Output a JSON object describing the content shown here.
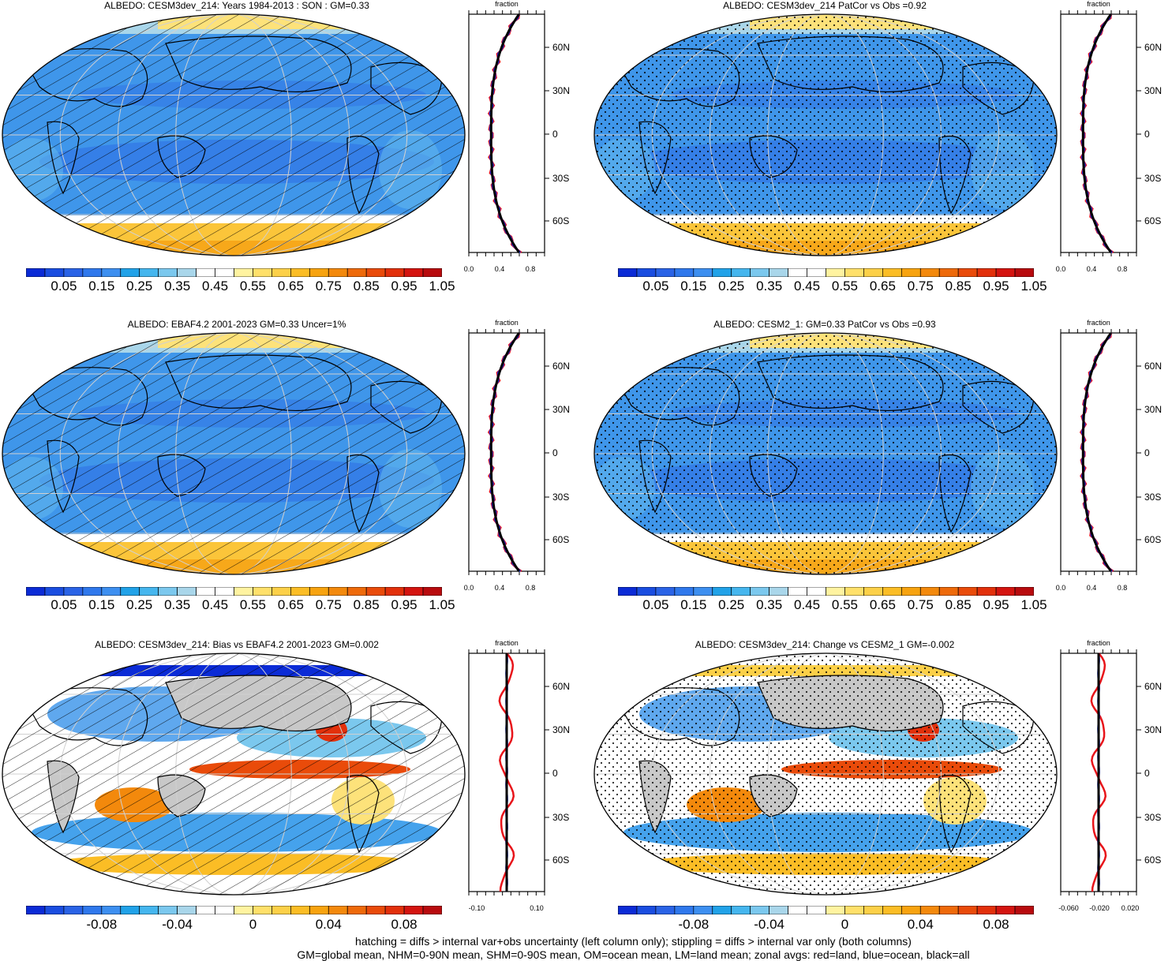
{
  "panels": [
    {
      "title": "ALBEDO: CESM3dev_214: Years 1984-2013 : SON : GM=0.33",
      "style": "abs",
      "pattern": "hatch",
      "zonal_ticks": [
        "0.0",
        "0.4",
        "0.8"
      ],
      "lat_labels": [
        "60N",
        "30N",
        "0",
        "30S",
        "60S"
      ]
    },
    {
      "title": "ALBEDO: CESM3dev_214 PatCor vs Obs =0.92",
      "style": "abs",
      "pattern": "stipple",
      "zonal_ticks": [
        "0.0",
        "0.4",
        "0.8"
      ],
      "lat_labels": [
        "60N",
        "30N",
        "0",
        "30S",
        "60S"
      ]
    },
    {
      "title": "ALBEDO: EBAF4.2 2001-2023 GM=0.33 Uncer=1%",
      "style": "abs",
      "pattern": "hatch",
      "zonal_ticks": [
        "0.0",
        "0.4",
        "0.8"
      ],
      "lat_labels": [
        "60N",
        "30N",
        "0",
        "30S",
        "60S"
      ]
    },
    {
      "title": "ALBEDO: CESM2_1: GM=0.33 PatCor vs Obs =0.93",
      "style": "abs",
      "pattern": "stipple",
      "zonal_ticks": [
        "0.0",
        "0.4",
        "0.8"
      ],
      "lat_labels": [
        "60N",
        "30N",
        "0",
        "30S",
        "60S"
      ]
    },
    {
      "title": "ALBEDO: CESM3dev_214: Bias vs EBAF4.2 2001-2023  GM=0.002",
      "style": "diff",
      "pattern": "hatch",
      "zonal_ticks": [
        "-0.10",
        "0.10"
      ],
      "lat_labels": [
        "60N",
        "30N",
        "0",
        "30S",
        "60S"
      ]
    },
    {
      "title": "ALBEDO: CESM3dev_214: Change vs CESM2_1 GM=-0.002",
      "style": "diff",
      "pattern": "stipple",
      "zonal_ticks": [
        "-0.060",
        "-0.020",
        "0.020"
      ],
      "lat_labels": [
        "60N",
        "30N",
        "0",
        "30S",
        "60S"
      ]
    }
  ],
  "zonal_axis_title": "fraction",
  "colorbar_abs": {
    "labels": [
      "0.05",
      "0.15",
      "0.25",
      "0.35",
      "0.45",
      "0.55",
      "0.65",
      "0.75",
      "0.85",
      "0.95",
      "1.05"
    ],
    "colors": [
      "#0b2bd6",
      "#1a4de0",
      "#2a63e6",
      "#2f78ec",
      "#3d8ff0",
      "#21a2e8",
      "#45b6ee",
      "#7bc8ee",
      "#a9d6ea",
      "#ffffff",
      "#ffffff",
      "#fff3a0",
      "#ffe06a",
      "#fcd048",
      "#fbbd25",
      "#f7a30f",
      "#f3890c",
      "#ee6a0a",
      "#e94b0a",
      "#e2300b",
      "#d41410",
      "#b80b0e"
    ]
  },
  "colorbar_diff": {
    "labels": [
      "-0.08",
      "-0.04",
      "0",
      "0.04",
      "0.08"
    ],
    "colors": [
      "#0b2bd6",
      "#1a4de0",
      "#2a63e6",
      "#2f78ec",
      "#3d8ff0",
      "#21a2e8",
      "#45b6ee",
      "#7bc8ee",
      "#a9d6ea",
      "#ffffff",
      "#ffffff",
      "#fff3a0",
      "#ffe06a",
      "#fcd048",
      "#fbbd25",
      "#f7a30f",
      "#f3890c",
      "#ee6a0a",
      "#e94b0a",
      "#e2300b",
      "#d41410",
      "#b80b0e"
    ]
  },
  "footnotes": [
    "hatching = diffs > internal var+obs uncertainty (left column only); stippling = diffs > internal var only (both columns)",
    "GM=global mean, NHM=0-90N mean, SHM=0-90S mean, OM=ocean mean, LM=land mean; zonal avgs: red=land, blue=ocean, black=all"
  ],
  "zonal_legend_colors": {
    "land": "#e8141a",
    "ocean": "#1430e6",
    "all": "#000000"
  }
}
